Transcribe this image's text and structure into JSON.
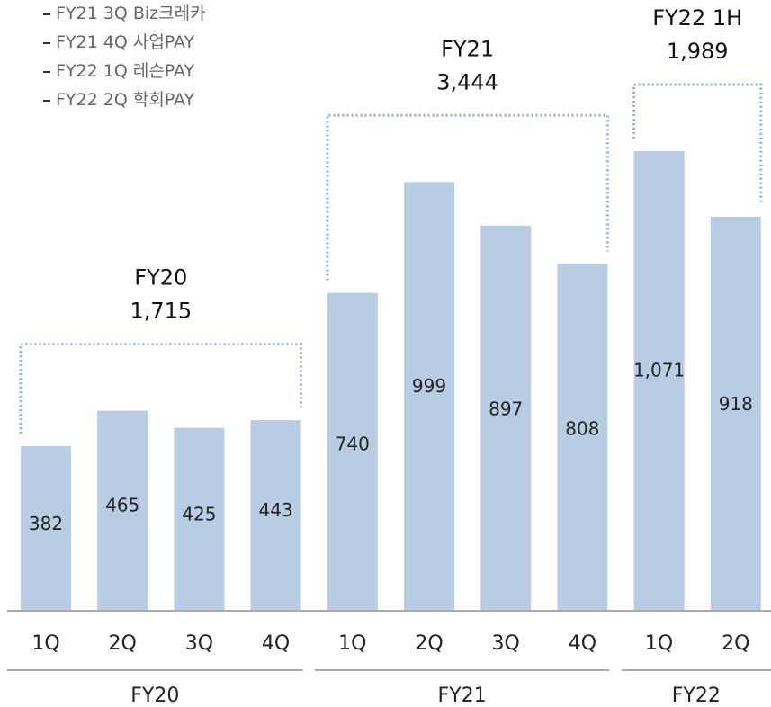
{
  "legend": {
    "items": [
      "FY21 3Q Biz크레카",
      "FY21 4Q 사업PAY",
      "FY22 1Q 레슨PAY",
      "FY22 2Q 학회PAY"
    ]
  },
  "chart_data": {
    "type": "bar",
    "categories": [
      "1Q",
      "2Q",
      "3Q",
      "4Q",
      "1Q",
      "2Q",
      "3Q",
      "4Q",
      "1Q",
      "2Q"
    ],
    "values": [
      382,
      465,
      425,
      443,
      740,
      999,
      897,
      808,
      1071,
      918
    ],
    "value_labels": [
      "382",
      "465",
      "425",
      "443",
      "740",
      "999",
      "897",
      "808",
      "1,071",
      "918"
    ],
    "groups": [
      {
        "label": "FY20",
        "start": 0,
        "end": 3,
        "summary_title": "FY20",
        "summary_value": "1,715"
      },
      {
        "label": "FY21",
        "start": 4,
        "end": 7,
        "summary_title": "FY21",
        "summary_value": "3,444"
      },
      {
        "label": "FY22",
        "start": 8,
        "end": 9,
        "summary_title": "FY22 1H",
        "summary_value": "1,989"
      }
    ],
    "ylim": [
      0,
      1080
    ],
    "grid": false,
    "colors": {
      "bar": "#b8cce4",
      "bracket": "#8eb0d4",
      "axis": "#aaaaaa"
    }
  }
}
